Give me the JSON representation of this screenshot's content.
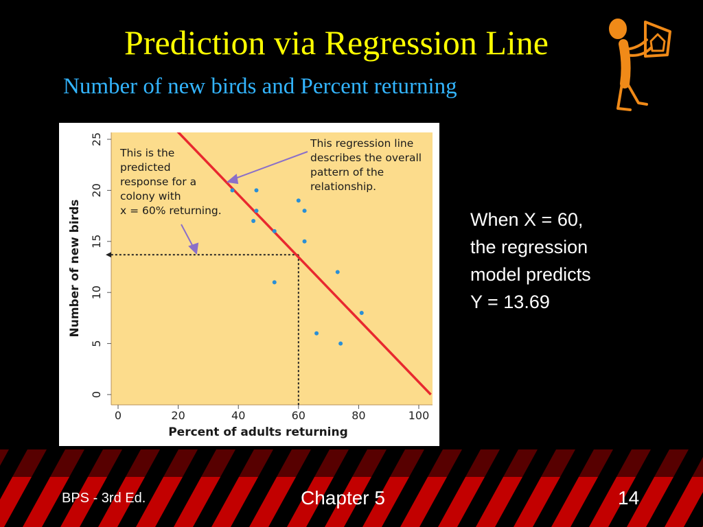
{
  "slide": {
    "title": "Prediction via Regression Line",
    "subtitle": "Number of new birds and Percent returning",
    "side_text": [
      "When X = 60,",
      "the regression",
      "model predicts",
      "Y = 13.69"
    ]
  },
  "footer": {
    "left": "BPS - 3rd Ed.",
    "center": "Chapter 5",
    "right": "14"
  },
  "colors": {
    "title": "#ffff00",
    "subtitle": "#33b5ff",
    "plot_bg": "#fcdc8c",
    "regression_line": "#e8282f",
    "points": "#2a8fd6",
    "footer_stripe": "#cc0000",
    "annotation_arrow": "#8a6fc9"
  },
  "icons": [
    "stick-figure-holding-house-sign-icon"
  ],
  "chart_data": {
    "type": "scatter",
    "xlabel": "Percent of adults returning",
    "ylabel": "Number of new birds",
    "xlim": [
      0,
      100
    ],
    "ylim": [
      0,
      25
    ],
    "xticks": [
      0,
      20,
      40,
      60,
      80,
      100
    ],
    "yticks": [
      0,
      5,
      10,
      15,
      20,
      25
    ],
    "points": [
      {
        "x": 38,
        "y": 20
      },
      {
        "x": 46,
        "y": 20
      },
      {
        "x": 46,
        "y": 18
      },
      {
        "x": 45,
        "y": 17
      },
      {
        "x": 52,
        "y": 16
      },
      {
        "x": 60,
        "y": 19
      },
      {
        "x": 62,
        "y": 18
      },
      {
        "x": 62,
        "y": 15
      },
      {
        "x": 52,
        "y": 11
      },
      {
        "x": 73,
        "y": 12
      },
      {
        "x": 81,
        "y": 8
      },
      {
        "x": 66,
        "y": 6
      },
      {
        "x": 74,
        "y": 5
      }
    ],
    "regression_line": {
      "x": [
        19,
        104
      ],
      "y": [
        26,
        0
      ]
    },
    "prediction": {
      "x": 60,
      "y": 13.69
    },
    "annotations": [
      {
        "lines": [
          "This is the",
          "predicted",
          "response for a",
          "colony with",
          "x = 60% returning."
        ]
      },
      {
        "lines": [
          "This regression line",
          "describes the overall",
          "pattern of the",
          "relationship."
        ]
      }
    ],
    "grid": false,
    "legend": "none"
  }
}
